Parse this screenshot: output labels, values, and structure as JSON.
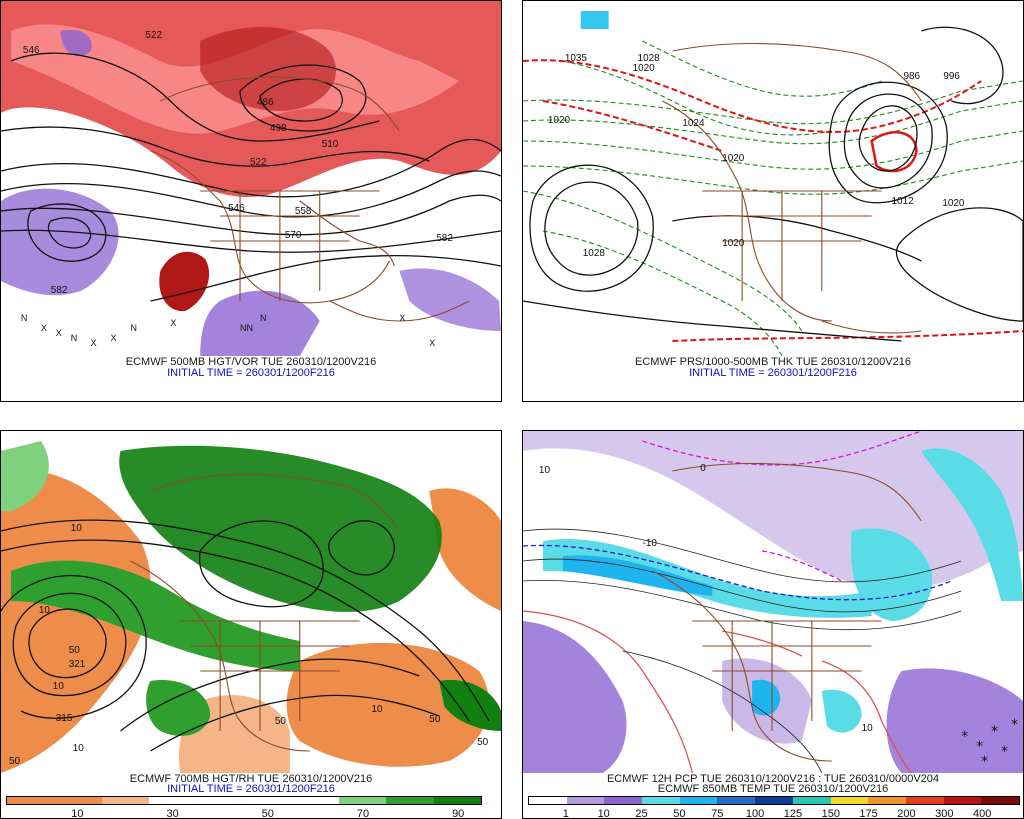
{
  "panels": [
    {
      "id": "500mb",
      "caption1": "ECMWF 500MB HGT/VOR TUE 260310/1200V216",
      "caption2": "INITIAL TIME = 260301/1200F216",
      "contour_labels": [
        "522",
        "546",
        "486",
        "498",
        "510",
        "522",
        "546",
        "558",
        "570",
        "582",
        "582"
      ]
    },
    {
      "id": "prs-thk",
      "caption1": "ECMWF PRS/1000-500MB THK TUE 260310/1200V216",
      "caption2": "INITIAL TIME = 260301/1200F216",
      "contour_labels": [
        "1035",
        "1020",
        "1028",
        "1020",
        "1012",
        "1020",
        "996",
        "986",
        "1028",
        "1024",
        "1020",
        "1020"
      ]
    },
    {
      "id": "700mb",
      "caption1": "ECMWF 700MB HGT/RH TUE 260310/1200V216",
      "caption2": "INITIAL TIME = 260301/1200F216",
      "contour_labels": [
        "10",
        "10",
        "50",
        "321",
        "10",
        "315",
        "10",
        "50",
        "50",
        "10",
        "50",
        "50"
      ],
      "colorbar": {
        "colors": [
          "#ee8c4a",
          "#ee8c4a",
          "#f4b688",
          "#ffffff",
          "#ffffff",
          "#ffffff",
          "#ffffff",
          "#7fd07f",
          "#2fa02f",
          "#108010"
        ],
        "ticks": [
          "10",
          "30",
          "50",
          "70",
          "90"
        ]
      }
    },
    {
      "id": "pcp",
      "caption1": "ECMWF 12H PCP TUE 260310/1200V216 : TUE 260310/0000V204",
      "caption2": "ECMWF 850MB TEMP TUE 260310/1200V216",
      "contour_labels": [
        "10",
        "0",
        "-10",
        "10"
      ],
      "colorbar": {
        "colors": [
          "#ffffff",
          "#b49bdc",
          "#8c64d2",
          "#5adce6",
          "#1eb4f0",
          "#1e6ec8",
          "#0a3c96",
          "#28c8b4",
          "#f0dc28",
          "#f09628",
          "#e63c1e",
          "#b41414",
          "#780a0a"
        ],
        "ticks": [
          "1",
          "10",
          "25",
          "50",
          "75",
          "100",
          "125",
          "150",
          "175",
          "200",
          "300",
          "400"
        ]
      }
    }
  ]
}
